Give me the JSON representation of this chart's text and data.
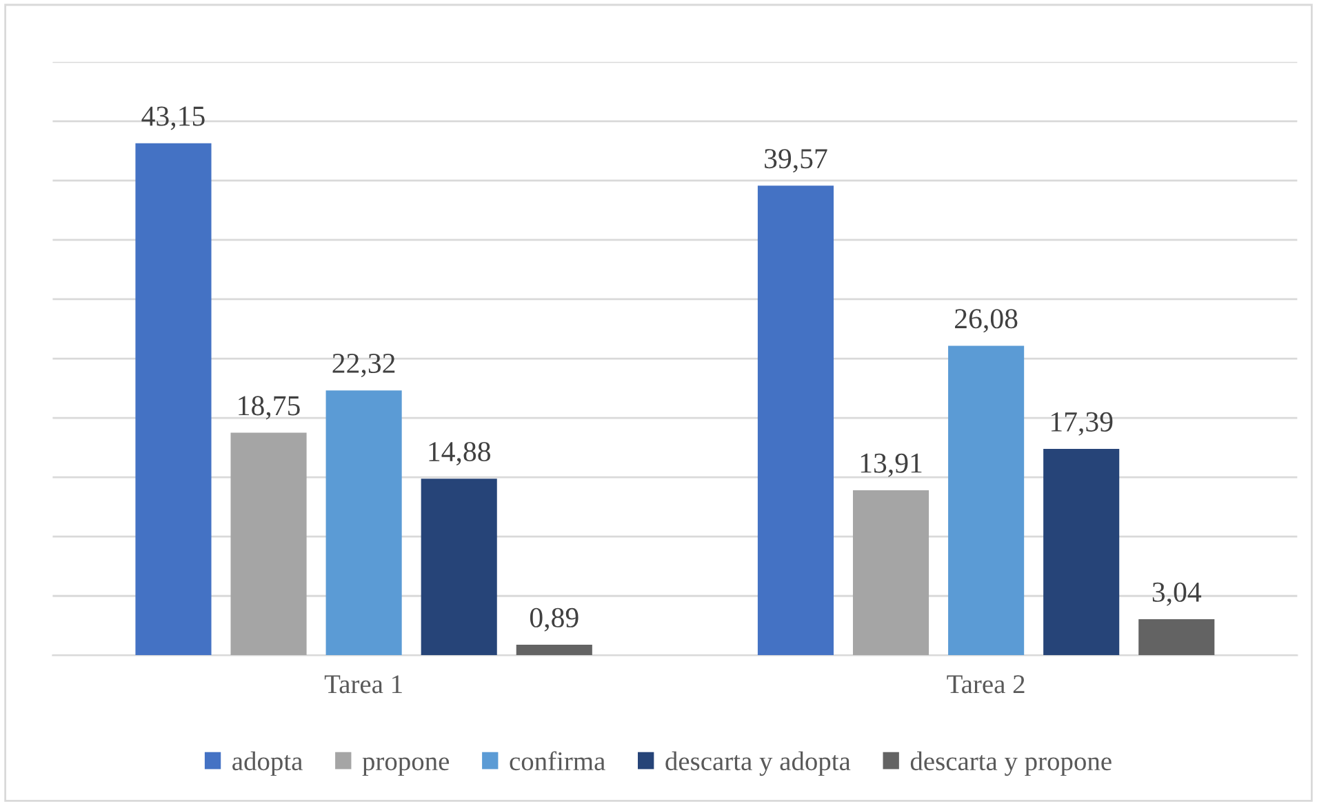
{
  "chart_data": {
    "type": "bar",
    "categories": [
      "Tarea 1",
      "Tarea 2"
    ],
    "series": [
      {
        "name": "adopta",
        "color": "#4472c4",
        "values": [
          43.15,
          39.57
        ],
        "value_labels": [
          "43,15",
          "39,57"
        ]
      },
      {
        "name": "propone",
        "color": "#a5a5a5",
        "values": [
          18.75,
          13.91
        ],
        "value_labels": [
          "18,75",
          "13,91"
        ]
      },
      {
        "name": "confirma",
        "color": "#5b9bd5",
        "values": [
          22.32,
          26.08
        ],
        "value_labels": [
          "22,32",
          "26,08"
        ]
      },
      {
        "name": "descarta y adopta",
        "color": "#264478",
        "values": [
          14.88,
          17.39
        ],
        "value_labels": [
          "14,88",
          "17,39"
        ]
      },
      {
        "name": "descarta y propone",
        "color": "#636363",
        "values": [
          0.89,
          3.04
        ],
        "value_labels": [
          "0,89",
          "3,04"
        ]
      }
    ],
    "ylim": [
      0,
      50
    ],
    "yticks": [
      {
        "value": 0,
        "label": null
      },
      {
        "value": 5,
        "label": null
      },
      {
        "value": 10,
        "label": null
      },
      {
        "value": 15,
        "label": null
      },
      {
        "value": 20,
        "label": null
      },
      {
        "value": 25,
        "label": null
      },
      {
        "value": 30,
        "label": null
      },
      {
        "value": 35,
        "label": null
      },
      {
        "value": 40,
        "label": null
      },
      {
        "value": 45,
        "label": null
      },
      {
        "value": 50,
        "label": null
      }
    ],
    "tick_labels": "x",
    "grid": "y",
    "legend": "bottom"
  }
}
